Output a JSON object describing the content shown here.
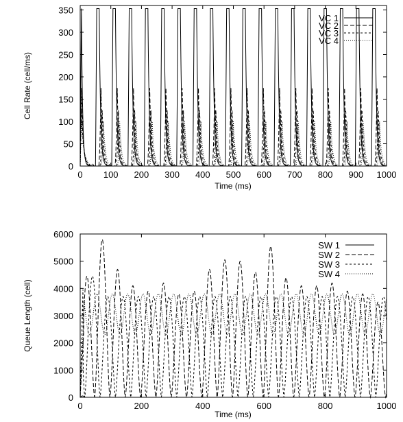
{
  "chart_data": [
    {
      "type": "line",
      "xlabel": "Time (ms)",
      "ylabel": "Cell Rate (cell/ms)",
      "xlim": [
        0,
        1000
      ],
      "ylim": [
        0,
        360
      ],
      "x_ticks": [
        "0",
        "100",
        "200",
        "300",
        "400",
        "500",
        "600",
        "700",
        "800",
        "900",
        "1000"
      ],
      "y_ticks": [
        "0",
        "50",
        "100",
        "150",
        "200",
        "250",
        "300",
        "350"
      ],
      "legend_position": "top-right",
      "oscillation_period_ms": 53,
      "series": [
        {
          "name": "VC 1",
          "style": "solid",
          "peak": 353,
          "first_peak_ms": 62
        },
        {
          "name": "VC 2",
          "style": "long-dash",
          "peak": 175,
          "first_peak_ms": 66
        },
        {
          "name": "VC 3",
          "style": "short-dash",
          "peak": 125,
          "first_peak_ms": 68
        },
        {
          "name": "VC 4",
          "style": "dotted",
          "peak": 100,
          "first_peak_ms": 70
        }
      ]
    },
    {
      "type": "line",
      "xlabel": "Time (ms)",
      "ylabel": "Queue Length (cell)",
      "xlim": [
        0,
        1000
      ],
      "ylim": [
        0,
        6000
      ],
      "x_ticks": [
        "0",
        "200",
        "400",
        "600",
        "800",
        "1000"
      ],
      "y_ticks": [
        "0",
        "1000",
        "2000",
        "3000",
        "4000",
        "5000",
        "6000"
      ],
      "legend_position": "top-right",
      "oscillation_period_ms": 50,
      "series": [
        {
          "name": "SW 1",
          "style": "solid",
          "peak": 50
        },
        {
          "name": "SW 2",
          "style": "long-dash",
          "peak": 5800,
          "typical_peak": 4300,
          "trough": 0
        },
        {
          "name": "SW 3",
          "style": "short-dash",
          "peak": 4450,
          "typical_peak": 3700,
          "trough": 0
        },
        {
          "name": "SW 4",
          "style": "dotted",
          "peak": 3900,
          "typical_peak": 3750,
          "trough": 2300
        }
      ]
    }
  ]
}
